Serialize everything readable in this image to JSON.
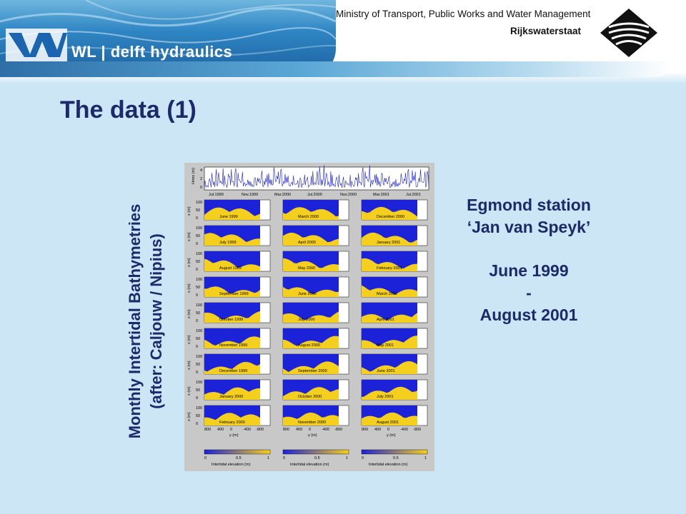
{
  "header": {
    "ministry": "Ministry of Transport, Public Works and Water Management",
    "agency": "Rijkswaterstaat",
    "brand_prefix": "WL",
    "brand_name": "delft hydraulics"
  },
  "slide": {
    "title": "The data (1)",
    "vertical_label_line1": "Monthly Intertidal Bathymetries",
    "vertical_label_line2": "(after: Caljouw / Nipius)",
    "station_line1": "Egmond station",
    "station_line2": "‘Jan van Speyk’",
    "period_start": "June 1999",
    "period_sep": "-",
    "period_end": "August 2001"
  },
  "figure": {
    "top_ylabel": "Hrms (m)",
    "top_yticks": [
      "4",
      "2",
      "0"
    ],
    "top_xticks": [
      "Jul.1999",
      "Nov.1999",
      "Mar.2000",
      "Jul.2000",
      "Nov.2000",
      "Mar.2001",
      "Jul.2001"
    ],
    "panel_ylabel": "x (m)",
    "panel_yticks": [
      "100",
      "50",
      "0"
    ],
    "panel_xticks": [
      "800",
      "400",
      "0",
      "-400",
      "-800"
    ],
    "panel_xlabel": "y (m)",
    "colorbar_ticks": [
      "0",
      "0.5",
      "1"
    ],
    "colorbar_label": "Intertidal elevation (m)",
    "columns": [
      [
        "June 1999",
        "July 1999",
        "August 1999",
        "September 1999",
        "October 1999",
        "November 1999",
        "December 1999",
        "January 2000",
        "February 2000"
      ],
      [
        "March 2000",
        "April 2000",
        "May 2000",
        "June 2000",
        "July 2000",
        "August 2000",
        "September 2000",
        "October 2000",
        "November 2000"
      ],
      [
        "December 2000",
        "January 2001",
        "February 2001",
        "March 2001",
        "April 2001",
        "May 2001",
        "June 2001",
        "July 2001",
        "August 2001"
      ]
    ],
    "colors": {
      "water": "#1c22d8",
      "sand": "#f5cf1e",
      "background": "#c8c8c8"
    }
  }
}
